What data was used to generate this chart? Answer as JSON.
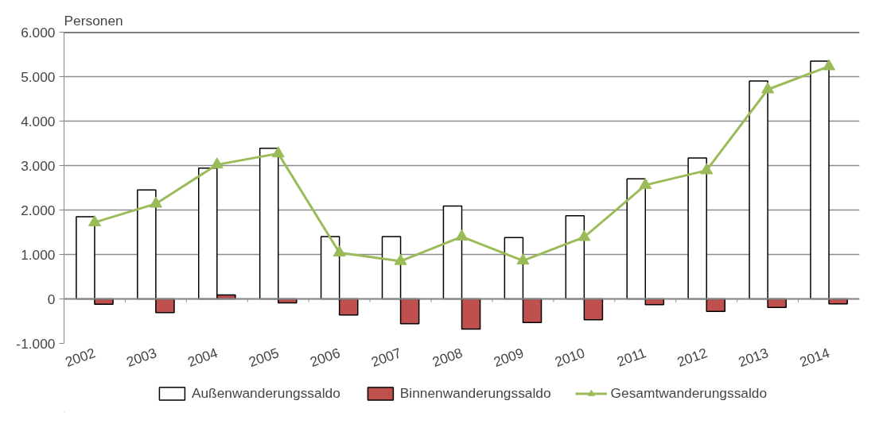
{
  "chart_data": {
    "type": "bar",
    "ylabel": "Personen",
    "categories": [
      "2002",
      "2003",
      "2004",
      "2005",
      "2006",
      "2007",
      "2008",
      "2009",
      "2010",
      "2011",
      "2012",
      "2013",
      "2014"
    ],
    "series": [
      {
        "name": "Außenwanderungssaldo",
        "color": "#ffffff",
        "values": [
          1850,
          2450,
          2940,
          3390,
          1400,
          1400,
          2090,
          1380,
          1870,
          2700,
          3170,
          4900,
          5350
        ]
      },
      {
        "name": "Binnenwanderungssaldo",
        "color": "#c0504d",
        "values": [
          -120,
          -310,
          90,
          -90,
          -360,
          -560,
          -680,
          -530,
          -470,
          -130,
          -280,
          -190,
          -110
        ]
      },
      {
        "name": "Gesamtwanderungssaldo",
        "type": "line",
        "color": "#9bbb59",
        "marker": "triangle",
        "values": [
          1720,
          2140,
          3020,
          3270,
          1040,
          850,
          1400,
          860,
          1390,
          2560,
          2890,
          4710,
          5230
        ]
      }
    ],
    "ylim": [
      -1000,
      6000
    ],
    "yticks": [
      {
        "value": -1000,
        "label": "-1.000"
      },
      0,
      {
        "value": 1000,
        "label": "1.000"
      },
      {
        "value": 2000,
        "label": "2.000"
      },
      {
        "value": 3000,
        "label": "3.000"
      },
      {
        "value": 4000,
        "label": "4.000"
      },
      {
        "value": 5000,
        "label": "5.000"
      },
      {
        "value": 6000,
        "label": "6.000"
      }
    ],
    "grid": "y",
    "legend": "bottom"
  }
}
